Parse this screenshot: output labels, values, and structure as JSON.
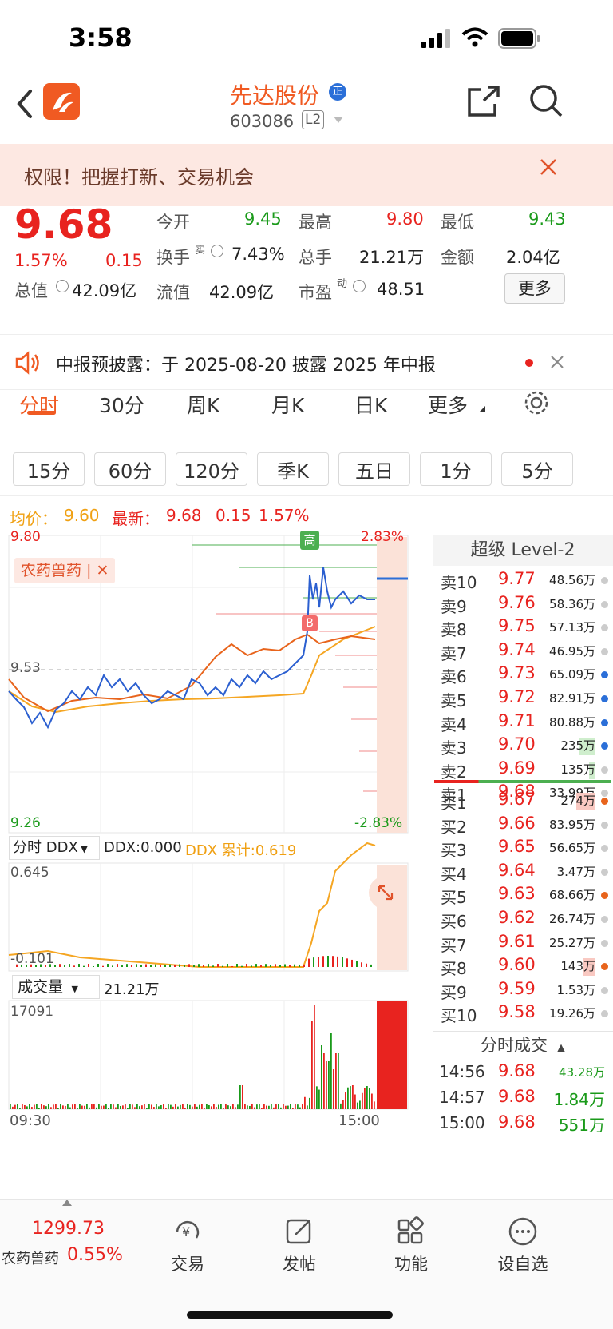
{
  "status": {
    "time": "3:58"
  },
  "header": {
    "stock_name": "先达股份",
    "badge": "正",
    "stock_code": "603086",
    "level_tag": "L2"
  },
  "banner": {
    "text": "权限！把握打新、交易机会"
  },
  "quote": {
    "price": "9.68",
    "change_pct": "1.57%",
    "change_amt": "0.15",
    "open_label": "今开",
    "open": "9.45",
    "high_label": "最高",
    "high": "9.80",
    "low_label": "最低",
    "low": "9.43",
    "turnover_label": "换手",
    "turnover_sup": "实",
    "turnover": "7.43%",
    "volume_label": "总手",
    "volume": "21.21万",
    "amount_label": "金额",
    "amount": "2.04亿",
    "mcap_label": "总值",
    "mcap": "42.09亿",
    "float_label": "流值",
    "float": "42.09亿",
    "pe_label": "市盈",
    "pe_sup": "动",
    "pe": "48.51",
    "more_btn": "更多"
  },
  "notice": {
    "text": "中报预披露：于 2025-08-20 披露 2025 年中报"
  },
  "tabs": {
    "t1": "分时",
    "t2": "30分",
    "t3": "周K",
    "t4": "月K",
    "t5": "日K",
    "t6": "更多"
  },
  "subtabs": {
    "s1": "15分",
    "s2": "60分",
    "s3": "120分",
    "s4": "季K",
    "s5": "五日",
    "s6": "1分",
    "s7": "5分"
  },
  "infoline": {
    "avg_label": "均价：",
    "avg": "9.60",
    "latest_label": "最新：",
    "latest": "9.68",
    "chg": "0.15",
    "pct": "1.57%"
  },
  "chart": {
    "price_high": "9.80",
    "price_pre": "9.53",
    "price_low": "9.26",
    "pct_high": "2.83%",
    "pct_low": "-2.83%",
    "sector_tag": "农药兽药",
    "close_mark": "✕",
    "high_mark": "高",
    "buy_mark": "B",
    "ddx_label": "分时 DDX",
    "ddx": "DDX:0.000",
    "ddx_cum": "DDX 累计:0.619",
    "ddx_high": "0.645",
    "ddx_low": "-0.101",
    "vol_label": "成交量",
    "vol_total": "21.21万",
    "vol_max": "17091",
    "time_start": "09:30",
    "time_end": "15:00"
  },
  "level2": {
    "title": "超级 Level-2",
    "asks": [
      {
        "label": "卖10",
        "price": "9.77",
        "vol": "48.56万"
      },
      {
        "label": "卖9",
        "price": "9.76",
        "vol": "58.36万"
      },
      {
        "label": "卖8",
        "price": "9.75",
        "vol": "57.13万"
      },
      {
        "label": "卖7",
        "price": "9.74",
        "vol": "46.95万"
      },
      {
        "label": "卖6",
        "price": "9.73",
        "vol": "65.09万"
      },
      {
        "label": "卖5",
        "price": "9.72",
        "vol": "82.91万"
      },
      {
        "label": "卖4",
        "price": "9.71",
        "vol": "80.88万"
      },
      {
        "label": "卖3",
        "price": "9.70",
        "vol": "235万"
      },
      {
        "label": "卖2",
        "price": "9.69",
        "vol": "135万"
      },
      {
        "label": "卖1",
        "price": "9.68",
        "vol": "33.99万"
      }
    ],
    "bids": [
      {
        "label": "买1",
        "price": "9.67",
        "vol": "274万"
      },
      {
        "label": "买2",
        "price": "9.66",
        "vol": "83.95万"
      },
      {
        "label": "买3",
        "price": "9.65",
        "vol": "56.65万"
      },
      {
        "label": "买4",
        "price": "9.64",
        "vol": "3.47万"
      },
      {
        "label": "买5",
        "price": "9.63",
        "vol": "68.66万"
      },
      {
        "label": "买6",
        "price": "9.62",
        "vol": "26.74万"
      },
      {
        "label": "买7",
        "price": "9.61",
        "vol": "25.27万"
      },
      {
        "label": "买8",
        "price": "9.60",
        "vol": "143万"
      },
      {
        "label": "买9",
        "price": "9.59",
        "vol": "1.53万"
      },
      {
        "label": "买10",
        "price": "9.58",
        "vol": "19.26万"
      }
    ],
    "trades_title": "分时成交",
    "trades": [
      {
        "time": "14:56",
        "price": "9.68",
        "vol": "43.28万"
      },
      {
        "time": "14:57",
        "price": "9.68",
        "vol": "1.84万"
      },
      {
        "time": "15:00",
        "price": "9.68",
        "vol": "551万"
      }
    ]
  },
  "bottom": {
    "index_value": "1299.73",
    "index_name": "农药兽药",
    "index_pct": "0.55%",
    "trade": "交易",
    "post": "发帖",
    "func": "功能",
    "watch": "设自选"
  },
  "colors": {
    "up": "#e8231f",
    "down": "#1a9a1a",
    "price_line": "#2b5fd0",
    "avg_line": "#f5a623",
    "sector_line": "#e8641c",
    "accent": "#f05a22"
  }
}
